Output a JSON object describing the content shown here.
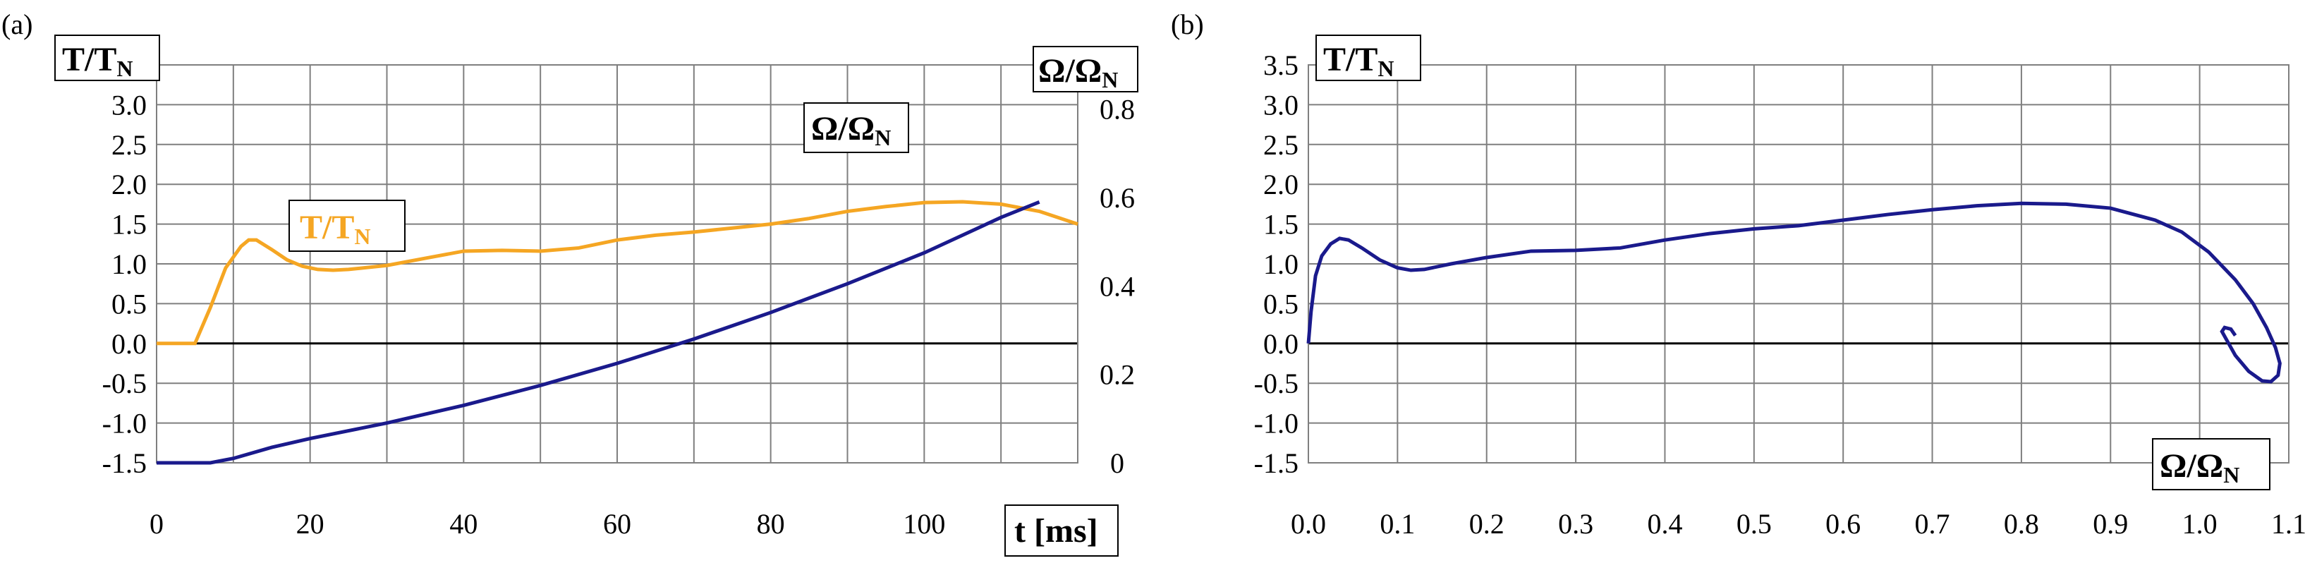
{
  "colors": {
    "torque": "#F5A623",
    "speed": "#1A1A8C",
    "grid": "#7f7f7f"
  },
  "chart_data": [
    {
      "type": "line",
      "panel": "(a)",
      "xlabel": "t [ms]",
      "ylabel_left": "T/T",
      "ylabel_left_sub": "N",
      "ylabel_right": "Ω/Ω",
      "ylabel_right_sub": "N",
      "xlim": [
        0,
        120
      ],
      "ylim_left": [
        -1.5,
        3.5
      ],
      "ylim_right": [
        0,
        0.9
      ],
      "x_ticks": [
        0,
        20,
        40,
        60,
        80,
        100
      ],
      "y_left_ticks": [
        "-1.5",
        "-1.0",
        "-0.5",
        "0.0",
        "0.5",
        "1.0",
        "1.5",
        "2.0",
        "2.5",
        "3.0"
      ],
      "y_left_tick_values": [
        -1.5,
        -1.0,
        -0.5,
        0.0,
        0.5,
        1.0,
        1.5,
        2.0,
        2.5,
        3.0
      ],
      "y_right_ticks": [
        "0",
        "0.2",
        "0.4",
        "0.6",
        "0.8"
      ],
      "y_right_tick_values": [
        0,
        0.2,
        0.4,
        0.6,
        0.8
      ],
      "series": [
        {
          "name": "T/T",
          "sub": "N",
          "axis": "left",
          "color": "#F5A623",
          "x": [
            0,
            5,
            7,
            9,
            11,
            12,
            13,
            15,
            17,
            19,
            21,
            23,
            25,
            30,
            35,
            40,
            45,
            50,
            55,
            60,
            65,
            70,
            75,
            80,
            85,
            90,
            95,
            100,
            105,
            110,
            115,
            120
          ],
          "y": [
            0,
            0,
            0.45,
            0.95,
            1.22,
            1.3,
            1.3,
            1.18,
            1.05,
            0.97,
            0.93,
            0.92,
            0.93,
            0.98,
            1.07,
            1.16,
            1.17,
            1.16,
            1.2,
            1.3,
            1.36,
            1.4,
            1.45,
            1.5,
            1.57,
            1.66,
            1.72,
            1.77,
            1.78,
            1.75,
            1.66,
            1.5
          ]
        },
        {
          "name": "Ω/Ω",
          "sub": "N",
          "axis": "right",
          "color": "#1A1A8C",
          "x": [
            0,
            7,
            10,
            15,
            20,
            30,
            40,
            50,
            60,
            70,
            80,
            90,
            100,
            110,
            115
          ],
          "y": [
            0,
            0,
            0.01,
            0.035,
            0.055,
            0.09,
            0.13,
            0.175,
            0.225,
            0.28,
            0.34,
            0.405,
            0.475,
            0.555,
            0.59
          ]
        }
      ]
    },
    {
      "type": "line",
      "panel": "(b)",
      "xlabel": "Ω/Ω",
      "xlabel_sub": "N",
      "ylabel": "T/T",
      "ylabel_sub": "N",
      "xlim": [
        0,
        1.1
      ],
      "ylim": [
        -1.5,
        3.5
      ],
      "x_ticks": [
        "0.0",
        "0.1",
        "0.2",
        "0.3",
        "0.4",
        "0.5",
        "0.6",
        "0.7",
        "0.8",
        "0.9",
        "1.0",
        "1.1"
      ],
      "x_tick_values": [
        0,
        0.1,
        0.2,
        0.3,
        0.4,
        0.5,
        0.6,
        0.7,
        0.8,
        0.9,
        1.0,
        1.1
      ],
      "y_ticks": [
        "-1.5",
        "-1.0",
        "-0.5",
        "0.0",
        "0.5",
        "1.0",
        "1.5",
        "2.0",
        "2.5",
        "3.0",
        "3.5"
      ],
      "y_tick_values": [
        -1.5,
        -1.0,
        -0.5,
        0.0,
        0.5,
        1.0,
        1.5,
        2.0,
        2.5,
        3.0,
        3.5
      ],
      "series": [
        {
          "name": "T/T vs Ω/Ω",
          "color": "#1A1A8C",
          "x": [
            0,
            0.003,
            0.008,
            0.015,
            0.025,
            0.035,
            0.045,
            0.06,
            0.08,
            0.1,
            0.115,
            0.13,
            0.16,
            0.2,
            0.25,
            0.3,
            0.35,
            0.4,
            0.45,
            0.5,
            0.55,
            0.6,
            0.65,
            0.7,
            0.75,
            0.8,
            0.85,
            0.9,
            0.95,
            0.98,
            1.01,
            1.04,
            1.06,
            1.075,
            1.085,
            1.09,
            1.088,
            1.08,
            1.07,
            1.055,
            1.04,
            1.03,
            1.025,
            1.028,
            1.035,
            1.04
          ],
          "y": [
            0,
            0.4,
            0.85,
            1.1,
            1.25,
            1.32,
            1.3,
            1.2,
            1.05,
            0.95,
            0.92,
            0.93,
            1.0,
            1.08,
            1.16,
            1.17,
            1.2,
            1.3,
            1.38,
            1.44,
            1.48,
            1.55,
            1.62,
            1.68,
            1.73,
            1.76,
            1.75,
            1.7,
            1.55,
            1.4,
            1.15,
            0.8,
            0.5,
            0.2,
            -0.05,
            -0.25,
            -0.4,
            -0.48,
            -0.47,
            -0.35,
            -0.15,
            0.05,
            0.15,
            0.2,
            0.18,
            0.1
          ]
        }
      ]
    }
  ]
}
